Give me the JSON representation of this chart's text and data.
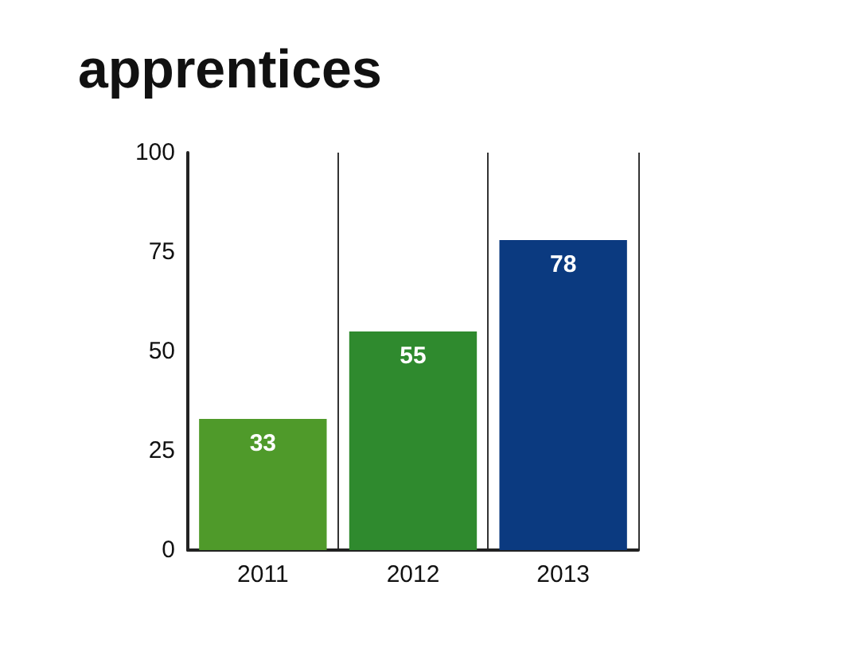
{
  "chart_data": {
    "type": "bar",
    "title": "apprentices",
    "categories": [
      "2011",
      "2012",
      "2013"
    ],
    "values": [
      33,
      55,
      78
    ],
    "colors": [
      "#4f9a2a",
      "#2f8a2e",
      "#0b3a80"
    ],
    "ylim": [
      0,
      100
    ],
    "yticks": [
      0,
      25,
      50,
      75,
      100
    ],
    "data_labels": true,
    "grid": "x"
  }
}
